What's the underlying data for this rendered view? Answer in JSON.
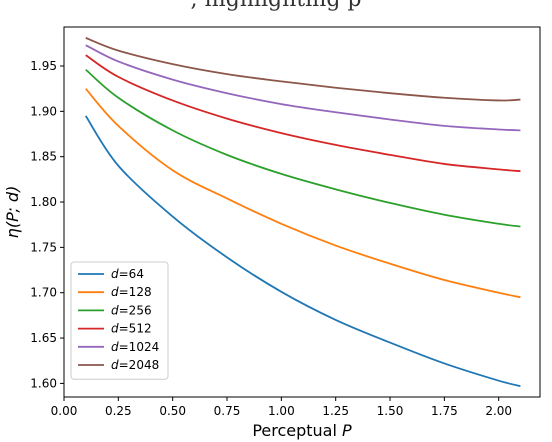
{
  "top_text": ", highlighting p",
  "chart_data": {
    "type": "line",
    "title": "",
    "xlabel": "Perceptual P",
    "xlabel_parts": {
      "prefix": "Perceptual ",
      "var": "P"
    },
    "ylabel": "η(P; d)",
    "xlim": [
      0.0,
      2.19
    ],
    "ylim": [
      1.585,
      1.993
    ],
    "xticks": [
      0.0,
      0.25,
      0.5,
      0.75,
      1.0,
      1.25,
      1.5,
      1.75,
      2.0
    ],
    "xtick_labels": [
      "0.00",
      "0.25",
      "0.50",
      "0.75",
      "1.00",
      "1.25",
      "1.50",
      "1.75",
      "2.00"
    ],
    "yticks": [
      1.6,
      1.65,
      1.7,
      1.75,
      1.8,
      1.85,
      1.9,
      1.95
    ],
    "ytick_labels": [
      "1.60",
      "1.65",
      "1.70",
      "1.75",
      "1.80",
      "1.85",
      "1.90",
      "1.95"
    ],
    "grid": false,
    "legend_position": "lower-left",
    "x": [
      0.1,
      0.25,
      0.5,
      0.75,
      1.0,
      1.25,
      1.5,
      1.75,
      2.0,
      2.1
    ],
    "series": [
      {
        "name": "d=64",
        "legend_var": "d",
        "legend_value": "=64",
        "color": "#1f77b4",
        "values": [
          1.895,
          1.84,
          1.784,
          1.739,
          1.701,
          1.67,
          1.645,
          1.622,
          1.603,
          1.597
        ]
      },
      {
        "name": "d=128",
        "legend_var": "d",
        "legend_value": "=128",
        "color": "#ff7f0e",
        "values": [
          1.925,
          1.884,
          1.835,
          1.804,
          1.776,
          1.752,
          1.732,
          1.714,
          1.7,
          1.695
        ]
      },
      {
        "name": "d=256",
        "legend_var": "d",
        "legend_value": "=256",
        "color": "#2ca02c",
        "values": [
          1.946,
          1.915,
          1.879,
          1.852,
          1.831,
          1.814,
          1.799,
          1.786,
          1.776,
          1.773
        ]
      },
      {
        "name": "d=512",
        "legend_var": "d",
        "legend_value": "=512",
        "color": "#d62728",
        "values": [
          1.962,
          1.938,
          1.912,
          1.892,
          1.876,
          1.863,
          1.852,
          1.842,
          1.836,
          1.834
        ]
      },
      {
        "name": "d=1024",
        "legend_var": "d",
        "legend_value": "=1024",
        "color": "#9467bd",
        "values": [
          1.973,
          1.955,
          1.935,
          1.92,
          1.908,
          1.899,
          1.891,
          1.884,
          1.88,
          1.879
        ]
      },
      {
        "name": "d=2048",
        "legend_var": "d",
        "legend_value": "=2048",
        "color": "#8c564b",
        "values": [
          1.981,
          1.967,
          1.952,
          1.941,
          1.933,
          1.926,
          1.92,
          1.915,
          1.912,
          1.913
        ]
      }
    ]
  }
}
